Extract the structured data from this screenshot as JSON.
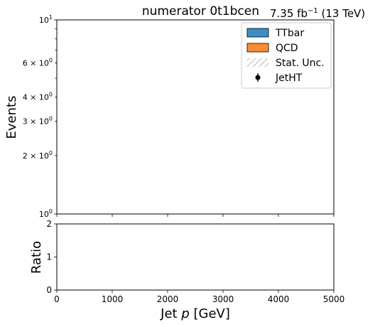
{
  "chart_data": [
    {
      "type": "bar",
      "panel": "main",
      "title": "numerator  0t1bcen",
      "lumi_value": "7.35 fb",
      "lumi_exponent": "−1",
      "lumi_suffix": "(13 TeV)",
      "ylabel": "Events",
      "yscale": "log",
      "ylim": [
        1,
        10
      ],
      "xlim": [
        0,
        5000
      ],
      "ytick_labels": [
        {
          "value": 1,
          "base": "10",
          "exp": "0"
        },
        {
          "value": 2,
          "base": "2 × 10",
          "exp": "0"
        },
        {
          "value": 3,
          "base": "3 × 10",
          "exp": "0"
        },
        {
          "value": 4,
          "base": "4 × 10",
          "exp": "0"
        },
        {
          "value": 6,
          "base": "6 × 10",
          "exp": "0"
        },
        {
          "value": 10,
          "base": "10",
          "exp": "1"
        }
      ],
      "legend_position": "top-right",
      "legend": [
        {
          "label": "TTbar",
          "kind": "fill",
          "color": "#3c8ec6"
        },
        {
          "label": "QCD",
          "kind": "fill",
          "color": "#ff8c2e"
        },
        {
          "label": "Stat. Unc.",
          "kind": "hatch",
          "color": "#888888"
        },
        {
          "label": "JetHT",
          "kind": "errorbar",
          "color": "#000000"
        }
      ],
      "series": []
    },
    {
      "type": "bar",
      "panel": "ratio",
      "ylabel": "Ratio",
      "ylim": [
        0,
        2
      ],
      "yticks": [
        0,
        1,
        2
      ],
      "xlim": [
        0,
        5000
      ],
      "xticks": [
        0,
        1000,
        2000,
        3000,
        4000,
        5000
      ],
      "xlabel_prefix": "Jet ",
      "xlabel_var": "p",
      "xlabel_suffix": " [GeV]",
      "series": []
    }
  ]
}
